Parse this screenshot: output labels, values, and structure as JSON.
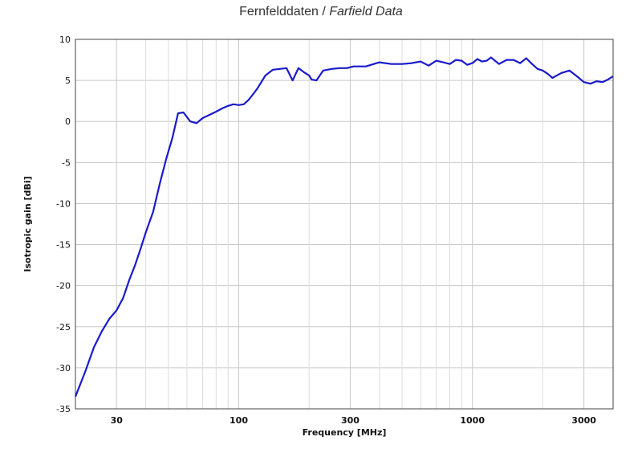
{
  "chart_data": {
    "type": "line",
    "title": "Fernfelddaten / ",
    "title_italic": "Farfield Data",
    "xlabel": "Frequency [MHz]",
    "ylabel": "Isotropic gain [dBi]",
    "xscale": "log",
    "xlim": [
      20,
      4000
    ],
    "ylim": [
      -35,
      10
    ],
    "xticks": [
      30,
      100,
      300,
      1000,
      3000
    ],
    "xtick_labels": [
      "30",
      "100",
      "300",
      "1000",
      "3000"
    ],
    "yticks": [
      10,
      5,
      0,
      -5,
      -10,
      -15,
      -20,
      -25,
      -30,
      -35
    ],
    "ytick_labels": [
      "10",
      "5",
      "0",
      "-5",
      "-10",
      "-15",
      "-20",
      "-25",
      "-30",
      "-35"
    ],
    "grid": true,
    "line_color": "#1a1acc",
    "series": [
      {
        "x": [
          20,
          22,
          24,
          26,
          28,
          30,
          32,
          34,
          36,
          38,
          40,
          43,
          46,
          49,
          52,
          55,
          58,
          62,
          66,
          70,
          75,
          80,
          85,
          90,
          95,
          100,
          105,
          110,
          115,
          120,
          130,
          140,
          150,
          160,
          170,
          180,
          190,
          200,
          205,
          215,
          230,
          250,
          270,
          290,
          310,
          350,
          400,
          450,
          500,
          550,
          600,
          650,
          700,
          750,
          800,
          850,
          900,
          950,
          1000,
          1050,
          1100,
          1150,
          1200,
          1300,
          1400,
          1500,
          1600,
          1700,
          1800,
          1900,
          2000,
          2100,
          2200,
          2400,
          2600,
          2800,
          3000,
          3200,
          3400,
          3600,
          3800,
          4000
        ],
        "y": [
          -33.5,
          -30.5,
          -27.5,
          -25.5,
          -24.0,
          -23.0,
          -21.5,
          -19.3,
          -17.5,
          -15.5,
          -13.5,
          -11.0,
          -7.5,
          -4.5,
          -2.0,
          1.0,
          1.1,
          0.0,
          -0.2,
          0.4,
          0.8,
          1.2,
          1.6,
          1.9,
          2.1,
          2.0,
          2.1,
          2.6,
          3.3,
          4.0,
          5.6,
          6.3,
          6.4,
          6.5,
          5.0,
          6.5,
          6.0,
          5.6,
          5.1,
          5.0,
          6.2,
          6.4,
          6.5,
          6.5,
          6.7,
          6.7,
          7.2,
          7.0,
          7.0,
          7.1,
          7.3,
          6.8,
          7.4,
          7.2,
          7.0,
          7.5,
          7.4,
          6.9,
          7.1,
          7.6,
          7.3,
          7.4,
          7.8,
          7.0,
          7.5,
          7.5,
          7.1,
          7.7,
          7.0,
          6.4,
          6.2,
          5.8,
          5.3,
          5.9,
          6.2,
          5.5,
          4.8,
          4.6,
          4.9,
          4.8,
          5.1,
          5.5
        ]
      }
    ]
  }
}
